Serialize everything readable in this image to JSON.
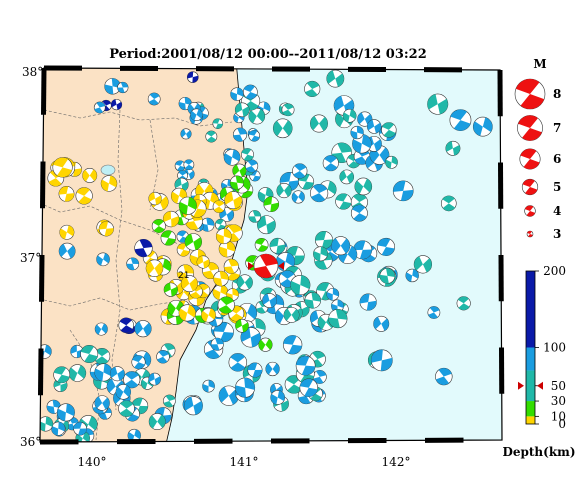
{
  "title": "Period:2001/08/12 00:00--2011/08/12 03:22",
  "lat_labels": [
    "38°",
    "37°",
    "36°"
  ],
  "lon_labels": [
    "140°",
    "141°",
    "142°"
  ],
  "legend_magnitude": {
    "header": "M",
    "items": [
      {
        "label": "8",
        "mag": 8
      },
      {
        "label": "7",
        "mag": 7
      },
      {
        "label": "6",
        "mag": 6
      },
      {
        "label": "5",
        "mag": 5
      },
      {
        "label": "4",
        "mag": 4
      },
      {
        "label": "3",
        "mag": 3
      }
    ]
  },
  "depth_scale": {
    "title": "Depth(km)",
    "ticks": [
      "200",
      "100",
      "50",
      "30",
      "10",
      "0"
    ],
    "marker_depth": 50,
    "bands": [
      {
        "from": 0,
        "to": 10,
        "color": "#ffd500"
      },
      {
        "from": 10,
        "to": 30,
        "color": "#33dd00"
      },
      {
        "from": 30,
        "to": 70,
        "color": "#20b8a8"
      },
      {
        "from": 70,
        "to": 100,
        "color": "#1a9de0"
      },
      {
        "from": 100,
        "to": 200,
        "color": "#0a1aa8"
      }
    ]
  },
  "colors": {
    "land": "#fbe2c5",
    "sea": "#e2fafc",
    "highlight_event": "#ee1111",
    "marker": "#cc0000"
  },
  "annotation": "21"
}
